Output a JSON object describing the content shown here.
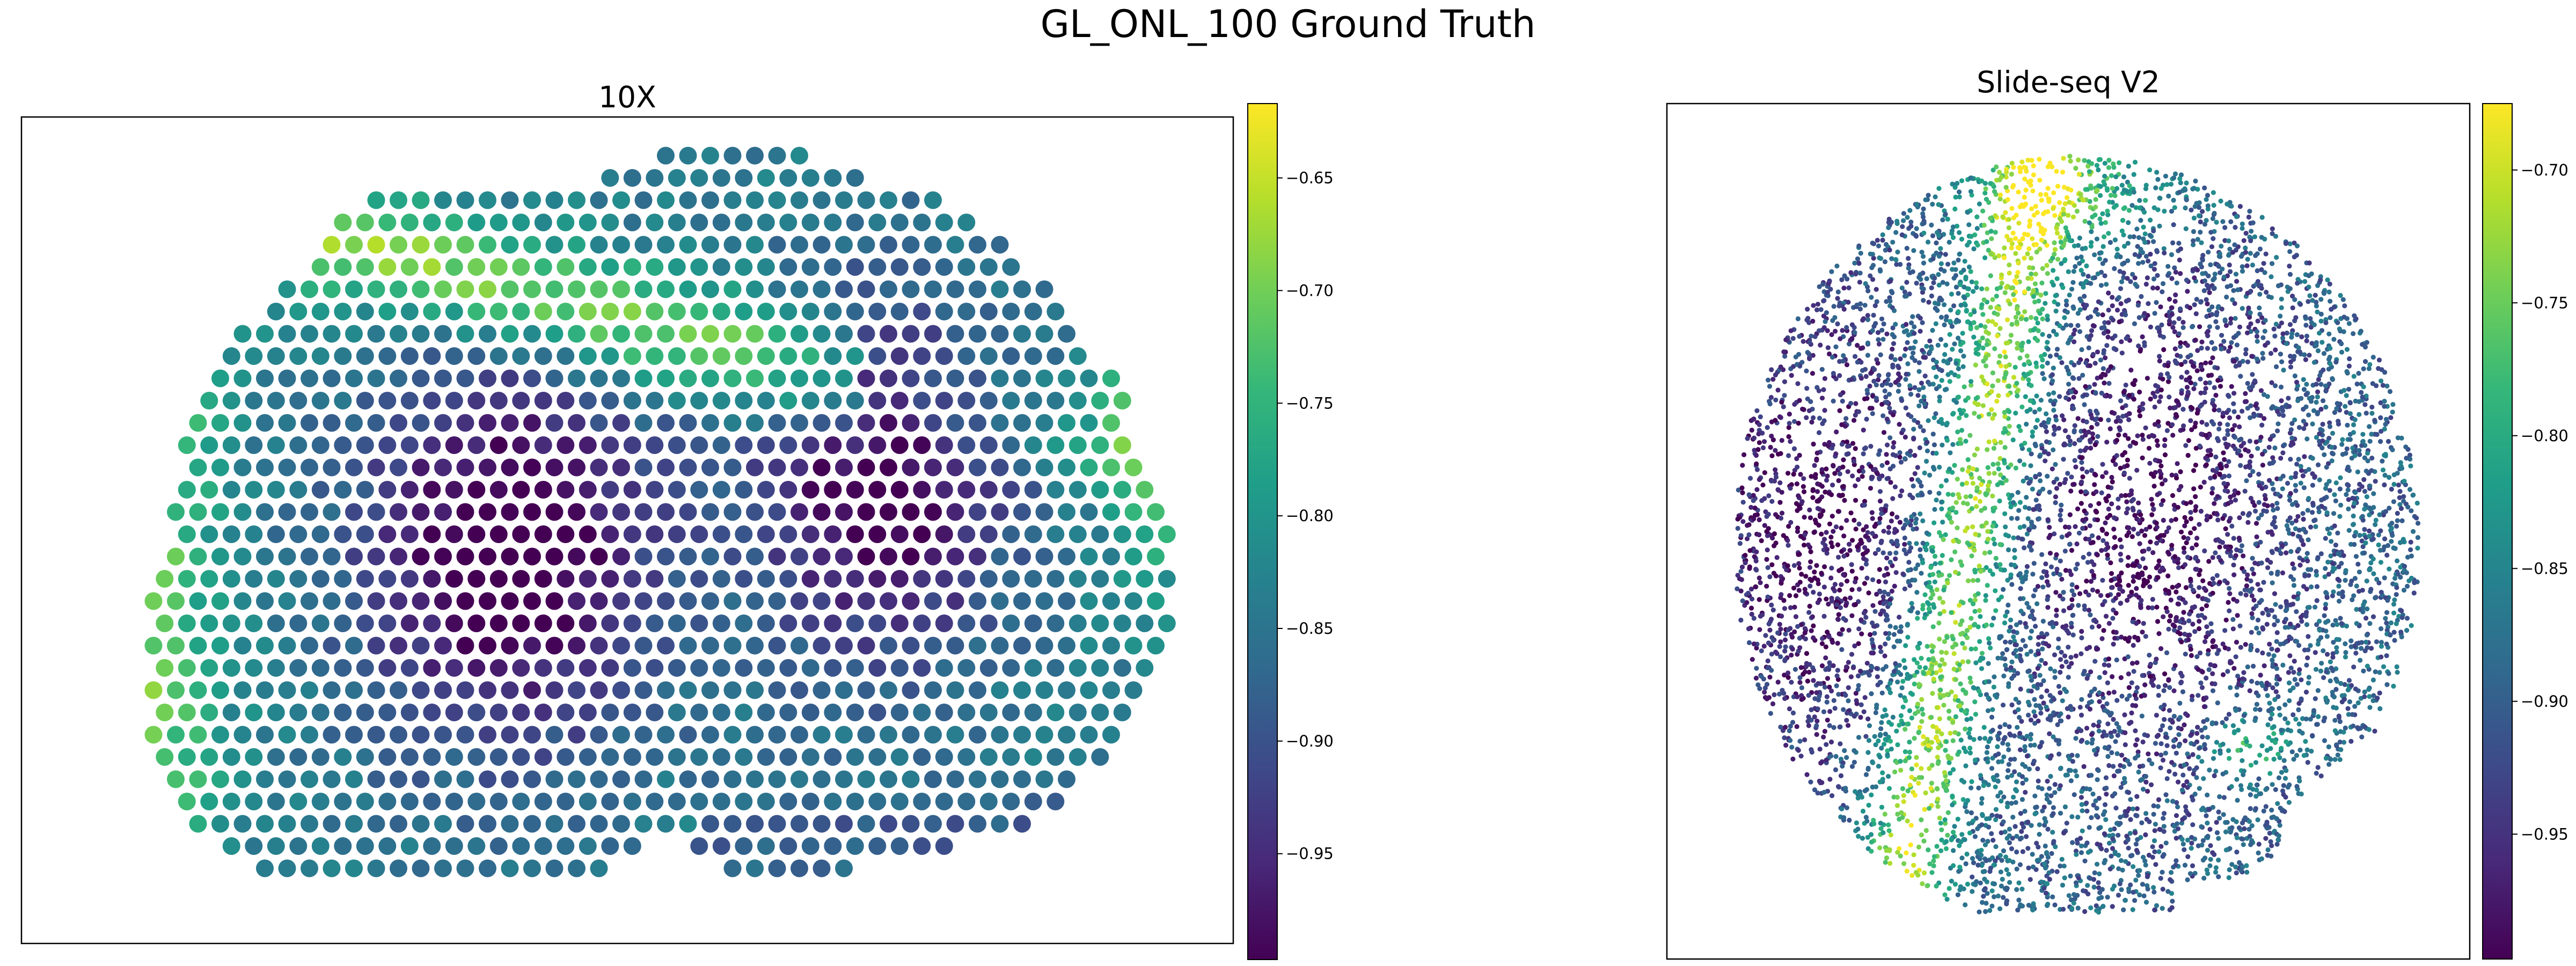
{
  "figure": {
    "title": "GL_ONL_100 Ground Truth"
  },
  "colors": {
    "viridis": [
      "#440154",
      "#482878",
      "#3e4989",
      "#31688e",
      "#26828e",
      "#1f9e89",
      "#35b779",
      "#6ece58",
      "#b5de2b",
      "#fde725"
    ],
    "axes_frame": "#000000",
    "background": "#ffffff"
  },
  "chart_data": [
    {
      "type": "scatter",
      "title": "10X",
      "xlabel": "",
      "ylabel": "",
      "grid": false,
      "marker": "large circular spots on a hexagonal lattice",
      "colorbar": {
        "cmap": "viridis",
        "range": [
          -0.997,
          -0.617
        ],
        "ticks": [
          -0.65,
          -0.7,
          -0.75,
          -0.8,
          -0.85,
          -0.9,
          -0.95
        ],
        "tick_labels": [
          "−0.65",
          "−0.70",
          "−0.75",
          "−0.80",
          "−0.85",
          "−0.90",
          "−0.95"
        ]
      },
      "value_pattern": "high values (≈ -0.62 to -0.72) in a band across the upper tissue and along the left and far-right edges; lowest values (≈ -0.99) in two central lobes; intermediate values elsewhere"
    },
    {
      "type": "scatter",
      "title": "Slide-seq V2",
      "xlabel": "",
      "ylabel": "",
      "grid": false,
      "marker": "dense small beads",
      "colorbar": {
        "cmap": "viridis",
        "range": [
          -0.997,
          -0.675
        ],
        "ticks": [
          -0.7,
          -0.75,
          -0.8,
          -0.85,
          -0.9,
          -0.95
        ],
        "tick_labels": [
          "−0.70",
          "−0.75",
          "−0.80",
          "−0.85",
          "−0.90",
          "−0.95"
        ]
      },
      "value_pattern": "a bright diagonal stripe (≈ -0.70) from the top centre down to the lower left, a small bright patch at lower right; lowest values (≈ -0.99) in large left and right regions"
    }
  ]
}
